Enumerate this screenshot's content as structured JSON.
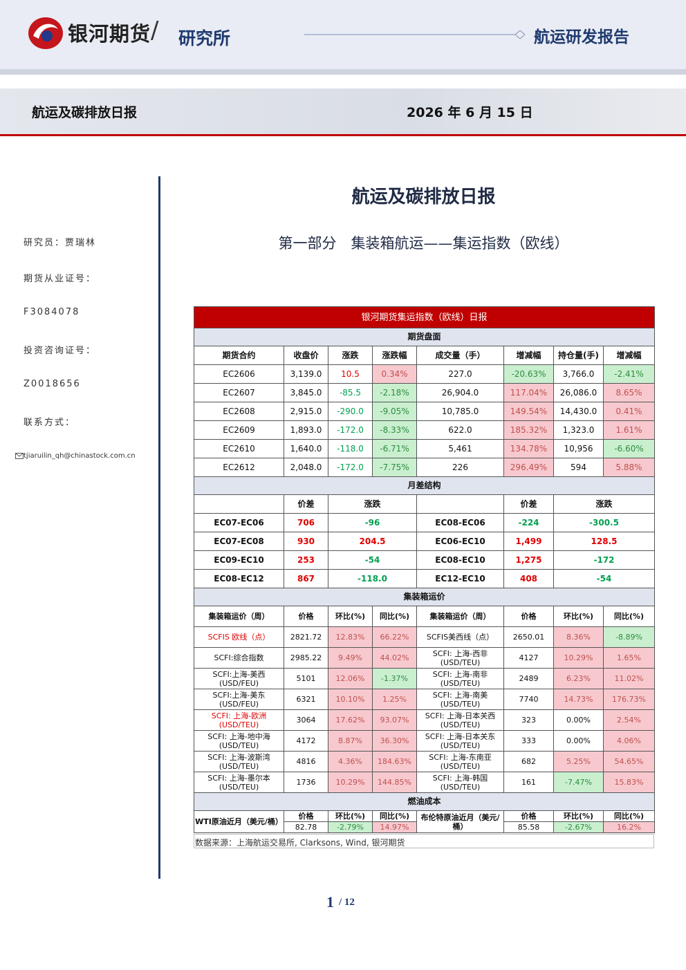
{
  "header": {
    "brand": "银河期货",
    "dept": "研究所",
    "report_type": "航运研发报告"
  },
  "banner": {
    "title": "航运及碳排放日报",
    "date": "2026 年 6 月 15 日"
  },
  "sidebar": [
    "研究员：贾瑞林",
    "期货从业证号：",
    "F3084078",
    "投资咨询证号：",
    "Z0018656",
    "联系方式："
  ],
  "email": "tjiaruilin_qh@chinastock.com.cn",
  "main": {
    "title": "航运及碳排放日报",
    "subtitle": "第一部分　集装箱航运——集运指数（欧线）"
  },
  "table": {
    "title": "银河期货集运指数（欧线）日报",
    "colors": {
      "up": "#e00000",
      "down": "#00a050",
      "up_fill": "#f7c9cf",
      "down_fill": "#c9efcf",
      "up_fill_text": "#c0504d",
      "down_fill_text": "#2e8b3e"
    },
    "sections": [
      {
        "title": "期货盘面",
        "text_cols": [
          2
        ],
        "fill_cols": [
          3,
          5,
          7
        ],
        "header": [
          "期货合约",
          "收盘价",
          "涨跌",
          "涨跌幅",
          "成交量（手）",
          "增减幅",
          "持仓量(手)",
          "增减幅"
        ],
        "rows": [
          [
            "EC2606",
            "3,139.0",
            "10.5",
            "0.34%",
            "227.0",
            "-20.63%",
            "3,766.0",
            "-2.41%"
          ],
          [
            "EC2607",
            "3,845.0",
            "-85.5",
            "-2.18%",
            "26,904.0",
            "117.04%",
            "26,086.0",
            "8.65%"
          ],
          [
            "EC2608",
            "2,915.0",
            "-290.0",
            "-9.05%",
            "10,785.0",
            "149.54%",
            "14,430.0",
            "0.41%"
          ],
          [
            "EC2609",
            "1,893.0",
            "-172.0",
            "-8.33%",
            "622.0",
            "185.32%",
            "1,323.0",
            "1.61%"
          ],
          [
            "EC2610",
            "1,640.0",
            "-118.0",
            "-6.71%",
            "5,461",
            "134.78%",
            "10,956",
            "-6.60%"
          ],
          [
            "EC2612",
            "2,048.0",
            "-172.0",
            "-7.75%",
            "226",
            "296.49%",
            "594",
            "5.88%"
          ]
        ]
      },
      {
        "title": "月差结构",
        "text_cols": [
          1,
          2,
          4,
          5
        ],
        "fill_cols": [],
        "colspans": [
          1,
          1,
          2,
          1,
          1,
          2
        ],
        "header": [
          null,
          "价差",
          "涨跌",
          null,
          "价差",
          "涨跌"
        ],
        "rows": [
          [
            "EC07-EC06",
            "706",
            "-96",
            "EC08-EC06",
            "-224",
            "-300.5"
          ],
          [
            "EC07-EC08",
            "930",
            "204.5",
            "EC06-EC10",
            "1,499",
            "128.5"
          ],
          [
            "EC09-EC10",
            "253",
            "-54",
            "EC08-EC10",
            "1,275",
            "-172"
          ],
          [
            "EC08-EC12",
            "867",
            "-118.0",
            "EC12-EC10",
            "408",
            "-54"
          ]
        ]
      },
      {
        "title": "集装箱运价",
        "text_cols": [],
        "fill_cols": [
          2,
          3,
          6,
          7
        ],
        "header": [
          "集装箱运价（周）",
          "价格",
          "环比(%)",
          "同比(%)",
          "集装箱运价（周）",
          "价格",
          "环比(%)",
          "同比(%)"
        ],
        "rows": [
          [
            {
              "text": "SCFIS 欧线（点）",
              "color": "#e00000"
            },
            "2821.72",
            "12.83%",
            "66.22%",
            "SCFIS美西线（点）",
            "2650.01",
            "8.36%",
            "-8.89%"
          ],
          [
            "SCFI:综合指数",
            "2985.22",
            "9.49%",
            "44.02%",
            "SCFI: 上海-西非\n(USD/TEU)",
            "4127",
            "10.29%",
            "1.65%"
          ],
          [
            "SCFI:上海-美西\n(USD/FEU)",
            "5101",
            "12.06%",
            "-1.37%",
            "SCFI: 上海-南非\n(USD/TEU)",
            "2489",
            "6.23%",
            "11.02%"
          ],
          [
            "SCFI:上海-美东\n(USD/FEU)",
            "6321",
            "10.10%",
            "1.25%",
            "SCFI: 上海-南美\n(USD/TEU)",
            "7740",
            "14.73%",
            "176.73%"
          ],
          [
            {
              "text": "SCFI: 上海-欧洲\n(USD/TEU)",
              "color": "#e00000"
            },
            "3064",
            "17.62%",
            "93.07%",
            "SCFI: 上海-日本关西\n(USD/TEU)",
            "323",
            "0.00%",
            "2.54%"
          ],
          [
            "SCFI: 上海-地中海\n(USD/TEU)",
            "4172",
            "8.87%",
            "36.30%",
            "SCFI: 上海-日本关东\n(USD/TEU)",
            "333",
            "0.00%",
            "4.06%"
          ],
          [
            "SCFI: 上海-波斯湾\n(USD/TEU)",
            "4816",
            "4.36%",
            "184.63%",
            "SCFI: 上海-东南亚\n(USD/TEU)",
            "682",
            "5.25%",
            "54.65%"
          ],
          [
            "SCFI: 上海-墨尔本\n(USD/TEU)",
            "1736",
            "10.29%",
            "144.85%",
            "SCFI: 上海-韩国\n(USD/TEU)",
            "161",
            "-7.47%",
            "15.83%"
          ]
        ]
      },
      {
        "title": "燃油成本",
        "text_cols": [],
        "fill_cols": [
          1,
          2,
          4,
          5
        ],
        "header_rowspans": [
          2,
          1,
          1,
          1,
          2,
          1,
          1,
          1
        ],
        "header": [
          "WTI原油近月（美元/桶）",
          "价格",
          "环比(%)",
          "同比(%)",
          "布伦特原油近月（美元/桶）",
          "价格",
          "环比(%)",
          "同比(%)"
        ],
        "rows": [
          [
            "82.78",
            "-2.79%",
            "14.97%",
            "85.58",
            "-2.67%",
            "16.2%"
          ]
        ]
      }
    ]
  },
  "source": "数据来源：上海航运交易所, Clarksons, Wind, 银河期货",
  "page": {
    "current": "1",
    "total": "/ 12"
  }
}
